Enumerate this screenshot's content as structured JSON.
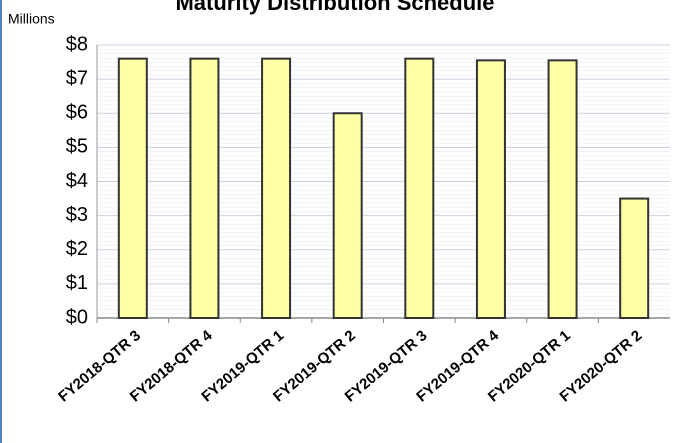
{
  "chart_data": {
    "type": "bar",
    "title": "Maturity Distribution Schedule",
    "y_unit_label": "Millions",
    "categories": [
      "FY2018-QTR 3",
      "FY2018-QTR 4",
      "FY2019-QTR 1",
      "FY2019-QTR 2",
      "FY2019-QTR 3",
      "FY2019-QTR 4",
      "FY2020-QTR 1",
      "FY2020-QTR 2"
    ],
    "values": [
      7.6,
      7.6,
      7.6,
      6.0,
      7.6,
      7.55,
      7.55,
      3.5
    ],
    "color": "#ffffa6",
    "ylim": [
      0,
      8
    ],
    "yticks": [
      {
        "value": 0,
        "label": "$0"
      },
      {
        "value": 1,
        "label": "$1"
      },
      {
        "value": 2,
        "label": "$2"
      },
      {
        "value": 3,
        "label": "$3"
      },
      {
        "value": 4,
        "label": "$4"
      },
      {
        "value": 5,
        "label": "$5"
      },
      {
        "value": 6,
        "label": "$6"
      },
      {
        "value": 7,
        "label": "$7"
      },
      {
        "value": 8,
        "label": "$8"
      }
    ],
    "grid": true
  }
}
